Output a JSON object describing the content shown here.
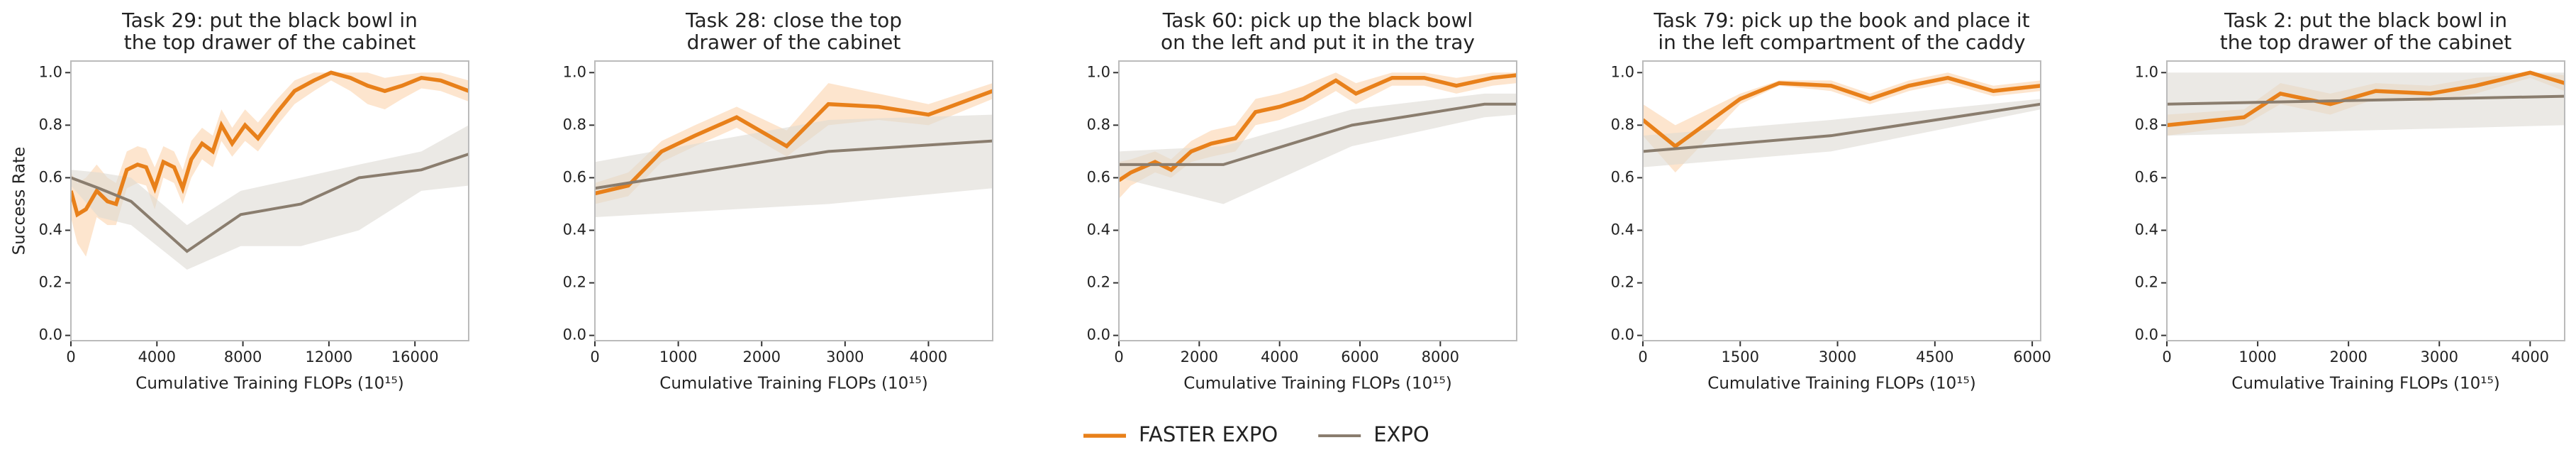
{
  "chart_data": [
    {
      "type": "line",
      "title": [
        "Task 29: put the black bowl in",
        "the top drawer of the cabinet"
      ],
      "xlabel": "Cumulative Training FLOPs (10¹⁵)",
      "ylabel": "Success Rate",
      "legend": "lower center",
      "xlim": [
        0,
        18500
      ],
      "ylim": [
        -0.02,
        1.044
      ],
      "xticks": [
        0,
        4000,
        8000,
        12000,
        16000
      ],
      "yticks": [
        {
          "value": 0,
          "label": "0.0"
        },
        0.2,
        0.4,
        0.6,
        0.8,
        {
          "value": 1,
          "label": "1.0"
        }
      ],
      "series": [
        {
          "name": "FASTER EXPO",
          "color": "#e8801a",
          "band_color": "#fbd3ad",
          "x": [
            0,
            300,
            700,
            1200,
            1700,
            2100,
            2600,
            3100,
            3500,
            3900,
            4300,
            4800,
            5200,
            5600,
            6100,
            6600,
            7000,
            7500,
            8100,
            8700,
            9600,
            10400,
            11300,
            12100,
            13000,
            13800,
            14600,
            15400,
            16300,
            17200,
            18500
          ],
          "values": [
            0.55,
            0.46,
            0.48,
            0.55,
            0.51,
            0.5,
            0.63,
            0.65,
            0.64,
            0.56,
            0.66,
            0.64,
            0.56,
            0.67,
            0.73,
            0.7,
            0.8,
            0.73,
            0.8,
            0.75,
            0.85,
            0.93,
            0.97,
            1.0,
            0.98,
            0.95,
            0.93,
            0.95,
            0.98,
            0.97,
            0.93
          ],
          "lower": [
            0.45,
            0.35,
            0.3,
            0.45,
            0.42,
            0.42,
            0.56,
            0.58,
            0.57,
            0.48,
            0.6,
            0.58,
            0.5,
            0.6,
            0.67,
            0.64,
            0.74,
            0.68,
            0.74,
            0.7,
            0.8,
            0.88,
            0.93,
            0.97,
            0.93,
            0.88,
            0.86,
            0.9,
            0.94,
            0.93,
            0.89
          ],
          "upper": [
            0.62,
            0.58,
            0.6,
            0.65,
            0.6,
            0.58,
            0.7,
            0.72,
            0.71,
            0.64,
            0.72,
            0.7,
            0.63,
            0.74,
            0.79,
            0.76,
            0.86,
            0.79,
            0.86,
            0.81,
            0.9,
            0.97,
            1.0,
            1.0,
            1.0,
            1.0,
            0.98,
            0.99,
            1.0,
            1.0,
            0.97
          ]
        },
        {
          "name": "EXPO",
          "color": "#8a7d6e",
          "band_color": "#dddad3",
          "x": [
            0,
            1300,
            2800,
            5400,
            7900,
            10700,
            13400,
            16300,
            18500
          ],
          "values": [
            0.6,
            0.56,
            0.51,
            0.32,
            0.46,
            0.5,
            0.6,
            0.63,
            0.69
          ],
          "lower": [
            0.57,
            0.45,
            0.42,
            0.25,
            0.34,
            0.34,
            0.4,
            0.55,
            0.57
          ],
          "upper": [
            0.63,
            0.62,
            0.6,
            0.42,
            0.55,
            0.6,
            0.65,
            0.7,
            0.8
          ]
        }
      ]
    },
    {
      "type": "line",
      "title": [
        "Task 28: close the top",
        "drawer of the cabinet"
      ],
      "xlabel": "Cumulative Training FLOPs (10¹⁵)",
      "xlim": [
        0,
        4770
      ],
      "ylim": [
        -0.02,
        1.044
      ],
      "xticks": [
        0,
        1000,
        2000,
        3000,
        4000
      ],
      "yticks": [
        {
          "value": 0,
          "label": "0.0"
        },
        0.2,
        0.4,
        0.6,
        0.8,
        {
          "value": 1,
          "label": "1.0"
        }
      ],
      "series": [
        {
          "name": "FASTER EXPO",
          "color": "#e8801a",
          "band_color": "#fbd3ad",
          "x": [
            0,
            400,
            800,
            1200,
            1700,
            2300,
            2800,
            3400,
            4000,
            4770
          ],
          "values": [
            0.54,
            0.57,
            0.7,
            0.76,
            0.83,
            0.72,
            0.88,
            0.87,
            0.84,
            0.93
          ],
          "lower": [
            0.5,
            0.53,
            0.66,
            0.72,
            0.79,
            0.68,
            0.8,
            0.82,
            0.8,
            0.9
          ],
          "upper": [
            0.58,
            0.62,
            0.74,
            0.8,
            0.87,
            0.78,
            0.96,
            0.92,
            0.88,
            0.96
          ]
        },
        {
          "name": "EXPO",
          "color": "#8a7d6e",
          "band_color": "#dddad3",
          "x": [
            0,
            2800,
            4770
          ],
          "values": [
            0.56,
            0.7,
            0.74
          ],
          "lower": [
            0.45,
            0.5,
            0.56
          ],
          "upper": [
            0.66,
            0.82,
            0.84
          ]
        }
      ]
    },
    {
      "type": "line",
      "title": [
        "Task 60: pick up the black bowl",
        "on the left and put it in the tray"
      ],
      "xlabel": "Cumulative Training FLOPs (10¹⁵)",
      "xlim": [
        0,
        9900
      ],
      "ylim": [
        -0.02,
        1.044
      ],
      "xticks": [
        0,
        2000,
        4000,
        6000,
        8000
      ],
      "yticks": [
        {
          "value": 0,
          "label": "0.0"
        },
        0.2,
        0.4,
        0.6,
        0.8,
        {
          "value": 1,
          "label": "1.0"
        }
      ],
      "series": [
        {
          "name": "FASTER EXPO",
          "color": "#e8801a",
          "band_color": "#fbd3ad",
          "x": [
            0,
            300,
            900,
            1300,
            1800,
            2300,
            2900,
            3400,
            4000,
            4600,
            5400,
            5900,
            6800,
            7600,
            8400,
            9300,
            9900
          ],
          "values": [
            0.59,
            0.62,
            0.66,
            0.63,
            0.7,
            0.73,
            0.75,
            0.85,
            0.87,
            0.9,
            0.97,
            0.92,
            0.98,
            0.98,
            0.95,
            0.98,
            0.99
          ],
          "lower": [
            0.52,
            0.57,
            0.62,
            0.6,
            0.66,
            0.68,
            0.7,
            0.8,
            0.82,
            0.86,
            0.93,
            0.88,
            0.95,
            0.95,
            0.92,
            0.95,
            0.96
          ],
          "upper": [
            0.66,
            0.67,
            0.7,
            0.67,
            0.74,
            0.78,
            0.8,
            0.9,
            0.92,
            0.95,
            1.0,
            0.96,
            1.0,
            1.0,
            0.98,
            1.0,
            1.0
          ]
        },
        {
          "name": "EXPO",
          "color": "#8a7d6e",
          "band_color": "#dddad3",
          "x": [
            0,
            2600,
            5800,
            9100,
            9900
          ],
          "values": [
            0.65,
            0.65,
            0.8,
            0.88,
            0.88
          ],
          "lower": [
            0.6,
            0.5,
            0.72,
            0.83,
            0.84
          ],
          "upper": [
            0.7,
            0.72,
            0.86,
            0.92,
            0.92
          ]
        }
      ]
    },
    {
      "type": "line",
      "title": [
        "Task 79: pick up the book and place it",
        "in the left compartment of the caddy"
      ],
      "xlabel": "Cumulative Training FLOPs (10¹⁵)",
      "xlim": [
        0,
        6130
      ],
      "ylim": [
        -0.02,
        1.044
      ],
      "xticks": [
        0,
        1500,
        3000,
        4500,
        6000
      ],
      "yticks": [
        {
          "value": 0,
          "label": "0.0"
        },
        0.2,
        0.4,
        0.6,
        0.8,
        {
          "value": 1,
          "label": "1.0"
        }
      ],
      "series": [
        {
          "name": "FASTER EXPO",
          "color": "#e8801a",
          "band_color": "#fbd3ad",
          "x": [
            0,
            500,
            1500,
            2100,
            2900,
            3500,
            4100,
            4700,
            5400,
            6130
          ],
          "values": [
            0.82,
            0.72,
            0.9,
            0.96,
            0.95,
            0.9,
            0.95,
            0.98,
            0.93,
            0.95
          ],
          "lower": [
            0.76,
            0.62,
            0.88,
            0.95,
            0.93,
            0.88,
            0.93,
            0.96,
            0.91,
            0.93
          ],
          "upper": [
            0.88,
            0.8,
            0.92,
            0.97,
            0.97,
            0.92,
            0.97,
            1.0,
            0.95,
            0.97
          ]
        },
        {
          "name": "EXPO",
          "color": "#8a7d6e",
          "band_color": "#dddad3",
          "x": [
            0,
            2900,
            6130
          ],
          "values": [
            0.7,
            0.76,
            0.88
          ],
          "lower": [
            0.64,
            0.7,
            0.86
          ],
          "upper": [
            0.76,
            0.82,
            0.9
          ]
        }
      ]
    },
    {
      "type": "line",
      "title": [
        "Task 2: put the black bowl in",
        "the top drawer of the cabinet"
      ],
      "xlabel": "Cumulative Training FLOPs (10¹⁵)",
      "xlim": [
        0,
        4380
      ],
      "ylim": [
        -0.02,
        1.044
      ],
      "xticks": [
        0,
        1000,
        2000,
        3000,
        4000
      ],
      "yticks": [
        {
          "value": 0,
          "label": "0.0"
        },
        0.2,
        0.4,
        0.6,
        0.8,
        {
          "value": 1,
          "label": "1.0"
        }
      ],
      "series": [
        {
          "name": "FASTER EXPO",
          "color": "#e8801a",
          "band_color": "#fbd3ad",
          "x": [
            0,
            850,
            1250,
            1800,
            2300,
            2900,
            3400,
            4000,
            4380
          ],
          "values": [
            0.8,
            0.83,
            0.92,
            0.88,
            0.93,
            0.92,
            0.95,
            1.0,
            0.96
          ],
          "lower": [
            0.76,
            0.8,
            0.88,
            0.84,
            0.9,
            0.89,
            0.92,
            0.98,
            0.93
          ],
          "upper": [
            0.84,
            0.86,
            0.96,
            0.92,
            0.96,
            0.95,
            0.98,
            1.0,
            0.99
          ]
        },
        {
          "name": "EXPO",
          "color": "#8a7d6e",
          "band_color": "#dddad3",
          "x": [
            0,
            4380
          ],
          "values": [
            0.88,
            0.91
          ],
          "lower": [
            0.76,
            0.8
          ],
          "upper": [
            1.0,
            1.0
          ]
        }
      ]
    }
  ]
}
